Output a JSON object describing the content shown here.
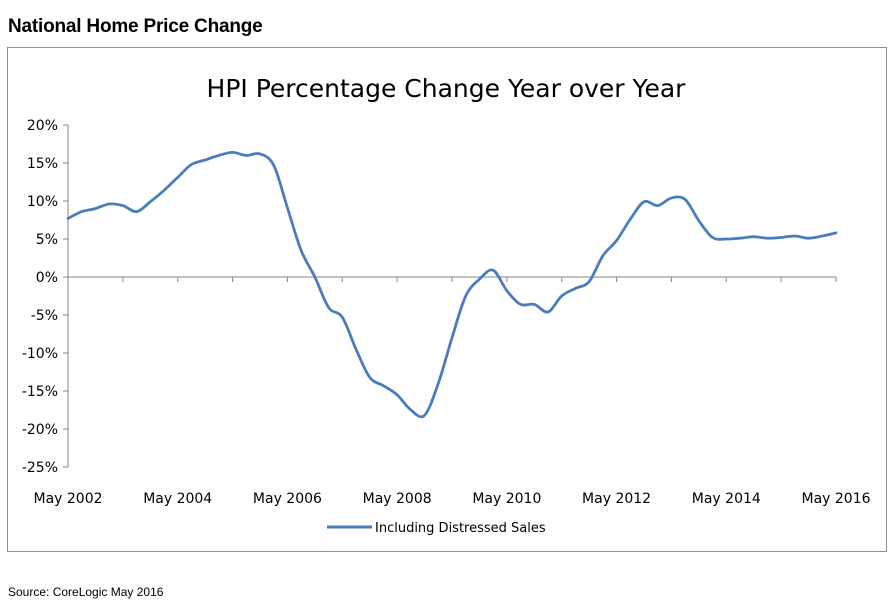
{
  "page": {
    "heading": "National Home Price Change",
    "source": "Source:  CoreLogic May 2016"
  },
  "chart_data": {
    "type": "line",
    "title": "HPI Percentage Change Year over Year",
    "xlabel": "",
    "ylabel": "",
    "x_tick_labels": [
      "May 2002",
      "May 2004",
      "May 2006",
      "May 2008",
      "May 2010",
      "May 2012",
      "May 2014",
      "May 2016"
    ],
    "y_tick_labels": [
      "20%",
      "15%",
      "10%",
      "5%",
      "0%",
      "-5%",
      "-10%",
      "-15%",
      "-20%",
      "-25%"
    ],
    "xlim": [
      "2002-05",
      "2016-05"
    ],
    "ylim": [
      -25,
      20
    ],
    "grid": false,
    "legend_position": "bottom",
    "series_color": "#4a7ebb",
    "series": [
      {
        "name": "Including Distressed Sales",
        "x": [
          "2002-05",
          "2002-08",
          "2002-11",
          "2003-02",
          "2003-05",
          "2003-08",
          "2003-11",
          "2004-02",
          "2004-05",
          "2004-08",
          "2004-11",
          "2005-02",
          "2005-05",
          "2005-08",
          "2005-11",
          "2006-02",
          "2006-05",
          "2006-08",
          "2006-11",
          "2007-02",
          "2007-05",
          "2007-08",
          "2007-11",
          "2008-02",
          "2008-05",
          "2008-08",
          "2008-11",
          "2009-02",
          "2009-05",
          "2009-08",
          "2009-11",
          "2010-02",
          "2010-05",
          "2010-08",
          "2010-11",
          "2011-02",
          "2011-05",
          "2011-08",
          "2011-11",
          "2012-02",
          "2012-05",
          "2012-08",
          "2012-11",
          "2013-02",
          "2013-05",
          "2013-08",
          "2013-11",
          "2014-02",
          "2014-05",
          "2014-08",
          "2014-11",
          "2015-02",
          "2015-05",
          "2015-08",
          "2015-11",
          "2016-02",
          "2016-05"
        ],
        "values": [
          7.7,
          8.6,
          9.0,
          9.6,
          9.4,
          8.6,
          9.9,
          11.4,
          13.1,
          14.8,
          15.4,
          16.0,
          16.4,
          16.0,
          16.2,
          14.7,
          9.1,
          3.5,
          0.0,
          -4.0,
          -5.3,
          -9.5,
          -13.2,
          -14.3,
          -15.5,
          -17.5,
          -18.2,
          -14.0,
          -8.0,
          -2.5,
          -0.3,
          0.9,
          -1.8,
          -3.6,
          -3.6,
          -4.6,
          -2.5,
          -1.5,
          -0.6,
          2.8,
          4.8,
          7.6,
          9.9,
          9.4,
          10.4,
          10.2,
          7.4,
          5.2,
          5.0,
          5.1,
          5.3,
          5.1,
          5.2,
          5.4,
          5.1,
          5.4,
          5.8
        ]
      }
    ]
  }
}
